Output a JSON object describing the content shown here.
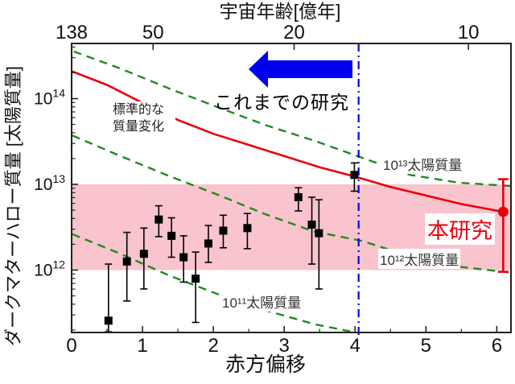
{
  "figure": {
    "top_axis_title": "宇宙年齢[億年]",
    "xlabel": "赤方偏移",
    "ylabel": "ダークマターハロー質量 [太陽質量]"
  },
  "annotations": {
    "standard_evolution_line1": "標準的な",
    "standard_evolution_line2": "質量変化",
    "previous_studies": "これまでの研究",
    "this_work": "本研究",
    "m13_label": "10¹³太陽質量",
    "m12_label": "10¹²太陽質量",
    "m11_label": "10¹¹太陽質量"
  },
  "colors": {
    "red": "#e8000d",
    "green": "#1f8a1f",
    "blue": "#0000ee",
    "pink_band": "#f9c4cd",
    "axis": "#222222",
    "text": "#111111"
  },
  "chart_data": {
    "type": "scatter",
    "title": "宇宙年齢[億年]",
    "xlabel": "赤方偏移",
    "ylabel": "ダークマターハロー質量 [太陽質量]",
    "x_range": [
      0,
      6.2
    ],
    "y_log10_range": [
      11.27,
      14.64
    ],
    "y_scale": "log10 solar masses",
    "grid": false,
    "x_ticks": [
      {
        "z": 0,
        "label": "0"
      },
      {
        "z": 1,
        "label": "1"
      },
      {
        "z": 2,
        "label": "2"
      },
      {
        "z": 3,
        "label": "3"
      },
      {
        "z": 4,
        "label": "4"
      },
      {
        "z": 5,
        "label": "5"
      },
      {
        "z": 6,
        "label": "6"
      }
    ],
    "x_minor_ticks": [
      0.5,
      1.5,
      2.5,
      3.5,
      4.5,
      5.5
    ],
    "y_ticks": [
      {
        "log10": 12,
        "base": "10",
        "exp": "12",
        "label": "10¹²"
      },
      {
        "log10": 13,
        "base": "10",
        "exp": "13",
        "label": "10¹³"
      },
      {
        "log10": 14,
        "base": "10",
        "exp": "14",
        "label": "10¹⁴"
      }
    ],
    "y_minor_decades": [
      11,
      12,
      13,
      14
    ],
    "top_ticks": [
      {
        "z": 0.0,
        "label": "138"
      },
      {
        "z": 1.15,
        "label": "50"
      },
      {
        "z": 3.14,
        "label": "20"
      },
      {
        "z": 5.6,
        "label": "10"
      }
    ],
    "pink_band_log10": [
      12,
      13
    ],
    "vline_z": 4.05,
    "black_points": [
      {
        "z": 0.52,
        "logM": 11.41,
        "hi": 12.07,
        "lo": 11.28
      },
      {
        "z": 0.78,
        "logM": 12.1,
        "hi": 12.44,
        "lo": 11.64
      },
      {
        "z": 1.02,
        "logM": 12.19,
        "hi": 12.49,
        "lo": 11.78
      },
      {
        "z": 1.23,
        "logM": 12.59,
        "hi": 12.75,
        "lo": 12.39
      },
      {
        "z": 1.41,
        "logM": 12.4,
        "hi": 12.61,
        "lo": 12.15
      },
      {
        "z": 1.58,
        "logM": 12.15,
        "hi": 12.4,
        "lo": 11.86
      },
      {
        "z": 1.75,
        "logM": 11.9,
        "hi": 12.21,
        "lo": 11.39
      },
      {
        "z": 1.93,
        "logM": 12.31,
        "hi": 12.52,
        "lo": 12.09
      },
      {
        "z": 2.14,
        "logM": 12.46,
        "hi": 12.64,
        "lo": 12.26
      },
      {
        "z": 2.48,
        "logM": 12.49,
        "hi": 12.66,
        "lo": 12.25
      },
      {
        "z": 3.2,
        "logM": 12.85,
        "hi": 12.96,
        "lo": 12.69
      },
      {
        "z": 3.39,
        "logM": 12.53,
        "hi": 12.85,
        "lo": 12.07
      },
      {
        "z": 3.49,
        "logM": 12.43,
        "hi": 12.82,
        "lo": 11.78
      },
      {
        "z": 3.99,
        "logM": 13.11,
        "hi": 13.25,
        "lo": 12.92
      }
    ],
    "red_point": {
      "z": 6.09,
      "logM": 12.68,
      "hi": 13.06,
      "lo": 11.98,
      "label": "本研究"
    },
    "red_line": {
      "label": "標準的な質量変化",
      "points": [
        [
          0.0,
          14.32
        ],
        [
          0.5,
          14.16
        ],
        [
          1.0,
          13.95
        ],
        [
          1.5,
          13.75
        ],
        [
          2.0,
          13.59
        ],
        [
          2.5,
          13.46
        ],
        [
          3.0,
          13.33
        ],
        [
          3.5,
          13.2
        ],
        [
          4.0,
          13.09
        ],
        [
          4.5,
          12.97
        ],
        [
          5.0,
          12.87
        ],
        [
          5.5,
          12.77
        ],
        [
          6.09,
          12.68
        ]
      ]
    },
    "green_lines": [
      {
        "label": "10¹³太陽質量",
        "points": [
          [
            0.03,
            14.55
          ],
          [
            0.69,
            14.35
          ],
          [
            1.37,
            14.12
          ],
          [
            2.06,
            13.9
          ],
          [
            2.74,
            13.69
          ],
          [
            3.42,
            13.51
          ],
          [
            4.1,
            13.31
          ],
          [
            4.78,
            13.11
          ],
          [
            5.46,
            13.02
          ],
          [
            6.2,
            12.98
          ]
        ]
      },
      {
        "label": "10¹²太陽質量",
        "points": [
          [
            0.01,
            13.57
          ],
          [
            0.69,
            13.33
          ],
          [
            1.37,
            13.1
          ],
          [
            2.06,
            12.88
          ],
          [
            2.74,
            12.65
          ],
          [
            3.42,
            12.45
          ],
          [
            4.1,
            12.34
          ],
          [
            4.78,
            12.16
          ],
          [
            5.46,
            12.04
          ],
          [
            6.2,
            11.97
          ]
        ]
      },
      {
        "label": "10¹¹太陽質量",
        "points": [
          [
            0.01,
            12.42
          ],
          [
            0.69,
            12.19
          ],
          [
            1.37,
            11.94
          ],
          [
            2.06,
            11.72
          ],
          [
            2.74,
            11.53
          ],
          [
            3.42,
            11.37
          ],
          [
            4.02,
            11.27
          ]
        ]
      }
    ],
    "arrow": {
      "direction": "left",
      "text": "これまでの研究"
    }
  }
}
